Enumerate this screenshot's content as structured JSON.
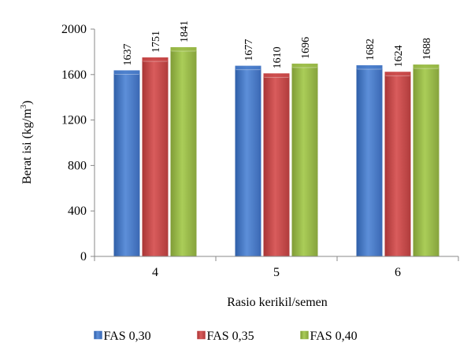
{
  "chart_data": {
    "type": "bar",
    "categories": [
      "4",
      "5",
      "6"
    ],
    "series": [
      {
        "name": "FAS 0,30",
        "values": [
          1637,
          1677,
          1682
        ],
        "color": "#4a7cc9"
      },
      {
        "name": "FAS 0,35",
        "values": [
          1751,
          1610,
          1624
        ],
        "color": "#c9494a"
      },
      {
        "name": "FAS 0,40",
        "values": [
          1841,
          1696,
          1688
        ],
        "color": "#9bbb4a"
      }
    ],
    "data_labels": [
      [
        "1637",
        "1677",
        "1682"
      ],
      [
        "1751",
        "1610",
        "1624"
      ],
      [
        "1841",
        "1696",
        "1688"
      ]
    ],
    "yticks": [
      0,
      400,
      800,
      1200,
      1600,
      2000
    ],
    "ytick_labels": [
      "0",
      "400",
      "800",
      "1200",
      "1600",
      "2000"
    ],
    "ylim": [
      0,
      2000
    ],
    "xlabel": "Rasio kerikil/semen",
    "ylabel": "Berat isi (kg/m",
    "ylabel_sup": "3",
    "ylabel_tail": ")",
    "grid": false,
    "legend_position": "bottom"
  }
}
